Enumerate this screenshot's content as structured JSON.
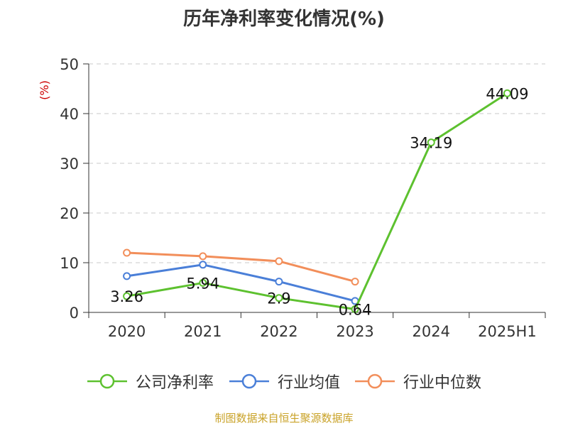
{
  "chart_data": {
    "type": "line",
    "title": "历年净利率变化情况(%)",
    "ylabel": "(%)",
    "categories": [
      "2020",
      "2021",
      "2022",
      "2023",
      "2024",
      "2025H1"
    ],
    "ylim": [
      0,
      50
    ],
    "yticks": [
      "0",
      "10",
      "20",
      "30",
      "40",
      "50"
    ],
    "grid": true,
    "legend_position": "bottom",
    "series": [
      {
        "name": "公司净利率",
        "color": "#5dc12f",
        "values": [
          3.26,
          5.94,
          2.9,
          0.64,
          34.19,
          44.09
        ],
        "labels": [
          "3.26",
          "5.94",
          "2.9",
          "0.64",
          "34.19",
          "44.09"
        ]
      },
      {
        "name": "行业均值",
        "color": "#4a7fd8",
        "values": [
          7.3,
          9.6,
          6.2,
          2.3,
          null,
          null
        ]
      },
      {
        "name": "行业中位数",
        "color": "#f28e5a",
        "values": [
          12.0,
          11.3,
          10.3,
          6.2,
          null,
          null
        ]
      }
    ]
  },
  "source": "制图数据来自恒生聚源数据库"
}
